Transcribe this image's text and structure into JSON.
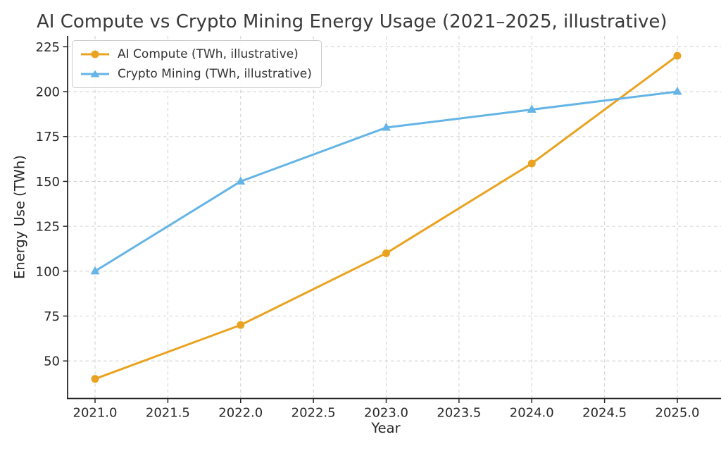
{
  "title": "AI Compute vs Crypto Mining Energy Usage (2021–2025, illustrative)",
  "chart_data": {
    "type": "line",
    "title": "AI Compute vs Crypto Mining Energy Usage (2021–2025, illustrative)",
    "xlabel": "Year",
    "ylabel": "Energy Use (TWh)",
    "x": [
      2021,
      2022,
      2023,
      2024,
      2025
    ],
    "series": [
      {
        "name": "AI Compute (TWh, illustrative)",
        "values": [
          40,
          70,
          110,
          160,
          220
        ],
        "color": "#E9A320",
        "marker": "circle"
      },
      {
        "name": "Crypto Mining (TWh, illustrative)",
        "values": [
          100,
          150,
          180,
          190,
          200
        ],
        "color": "#64B4E6",
        "marker": "triangle"
      }
    ],
    "x_tick_values": [
      2021,
      2021.5,
      2022,
      2022.5,
      2023,
      2023.5,
      2024,
      2024.5,
      2025
    ],
    "x_tick_labels": [
      "2021.0",
      "2021.5",
      "2022.0",
      "2022.5",
      "2023.0",
      "2023.5",
      "2024.0",
      "2024.5",
      "2025.0"
    ],
    "y_tick_values": [
      50,
      75,
      100,
      125,
      150,
      175,
      200,
      225
    ],
    "y_tick_labels": [
      "50",
      "75",
      "100",
      "125",
      "150",
      "175",
      "200",
      "225"
    ],
    "xlim": [
      2020.81,
      2025.2
    ],
    "ylim": [
      29,
      231
    ],
    "grid": true,
    "grid_style": "dashed",
    "grid_color": "#d3d3d3",
    "axis_color": "#262626",
    "legend_position": "upper-left",
    "background": "#ffffff"
  }
}
